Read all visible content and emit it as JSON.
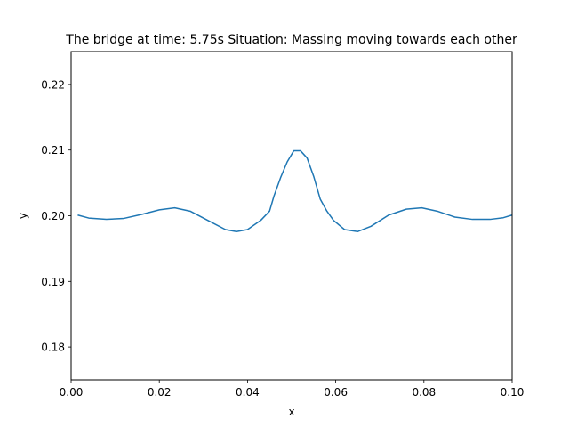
{
  "chart_data": {
    "type": "line",
    "title": "The bridge at time: 5.75s Situation: Massing moving towards each other",
    "xlabel": "x",
    "ylabel": "y",
    "xlim": [
      0.0,
      0.1
    ],
    "ylim": [
      0.175,
      0.225
    ],
    "x_ticks": [
      0.0,
      0.02,
      0.04,
      0.06,
      0.08,
      0.1
    ],
    "x_tick_labels": [
      "0.00",
      "0.02",
      "0.04",
      "0.06",
      "0.08",
      "0.10"
    ],
    "y_ticks": [
      0.18,
      0.19,
      0.2,
      0.21,
      0.22
    ],
    "y_tick_labels": [
      "0.18",
      "0.19",
      "0.20",
      "0.21",
      "0.22"
    ],
    "grid": false,
    "line_color": "#1f77b4",
    "series": [
      {
        "x": [
          0.0015,
          0.004,
          0.008,
          0.012,
          0.016,
          0.02,
          0.0235,
          0.027,
          0.031,
          0.035,
          0.0375,
          0.04,
          0.043,
          0.045,
          0.046,
          0.0475,
          0.049,
          0.0505,
          0.052,
          0.0535,
          0.055,
          0.0565,
          0.058,
          0.0595,
          0.062,
          0.065,
          0.068,
          0.072,
          0.076,
          0.0795,
          0.083,
          0.087,
          0.091,
          0.095,
          0.098,
          0.1
        ],
        "y": [
          0.2001,
          0.19965,
          0.19945,
          0.1996,
          0.2002,
          0.2009,
          0.2012,
          0.2007,
          0.1993,
          0.1979,
          0.1976,
          0.1979,
          0.1993,
          0.2007,
          0.203,
          0.2058,
          0.2082,
          0.2099,
          0.2099,
          0.2088,
          0.206,
          0.2025,
          0.2007,
          0.1993,
          0.1979,
          0.1976,
          0.1984,
          0.2001,
          0.201,
          0.2012,
          0.2007,
          0.1998,
          0.19945,
          0.19945,
          0.1997,
          0.2001
        ]
      }
    ]
  }
}
